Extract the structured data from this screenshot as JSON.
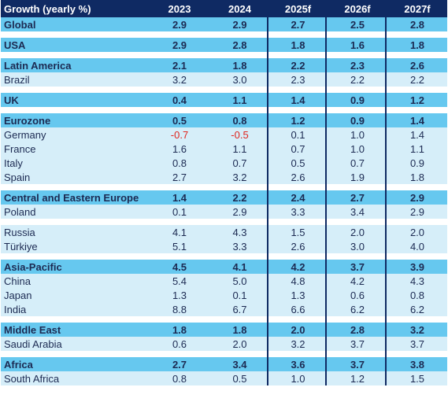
{
  "header": {
    "label": "Growth (yearly %)",
    "years": [
      "2023",
      "2024",
      "2025f",
      "2026f",
      "2027f"
    ]
  },
  "groups": [
    {
      "section": {
        "name": "Global",
        "values": [
          "2.9",
          "2.9",
          "2.7",
          "2.5",
          "2.8"
        ]
      },
      "rows": []
    },
    {
      "section": {
        "name": "USA",
        "values": [
          "2.9",
          "2.8",
          "1.8",
          "1.6",
          "1.8"
        ]
      },
      "rows": []
    },
    {
      "section": {
        "name": "Latin America",
        "values": [
          "2.1",
          "1.8",
          "2.2",
          "2.3",
          "2.6"
        ]
      },
      "rows": [
        {
          "name": "Brazil",
          "values": [
            "3.2",
            "3.0",
            "2.3",
            "2.2",
            "2.2"
          ]
        }
      ]
    },
    {
      "section": {
        "name": "UK",
        "values": [
          "0.4",
          "1.1",
          "1.4",
          "0.9",
          "1.2"
        ]
      },
      "rows": []
    },
    {
      "section": {
        "name": "Eurozone",
        "values": [
          "0.5",
          "0.8",
          "1.2",
          "0.9",
          "1.4"
        ]
      },
      "rows": [
        {
          "name": "Germany",
          "values": [
            "-0.7",
            "-0.5",
            "0.1",
            "1.0",
            "1.4"
          ]
        },
        {
          "name": "France",
          "values": [
            "1.6",
            "1.1",
            "0.7",
            "1.0",
            "1.1"
          ]
        },
        {
          "name": "Italy",
          "values": [
            "0.8",
            "0.7",
            "0.5",
            "0.7",
            "0.9"
          ]
        },
        {
          "name": "Spain",
          "values": [
            "2.7",
            "3.2",
            "2.6",
            "1.9",
            "1.8"
          ]
        }
      ]
    },
    {
      "section": {
        "name": "Central and Eastern Europe",
        "values": [
          "1.4",
          "2.2",
          "2.4",
          "2.7",
          "2.9"
        ]
      },
      "rows": [
        {
          "name": "Poland",
          "values": [
            "0.1",
            "2.9",
            "3.3",
            "3.4",
            "2.9"
          ]
        }
      ]
    },
    {
      "section": null,
      "rows": [
        {
          "name": "Russia",
          "values": [
            "4.1",
            "4.3",
            "1.5",
            "2.0",
            "2.0"
          ]
        },
        {
          "name": "Türkiye",
          "values": [
            "5.1",
            "3.3",
            "2.6",
            "3.0",
            "4.0"
          ]
        }
      ]
    },
    {
      "section": {
        "name": "Asia-Pacific",
        "values": [
          "4.5",
          "4.1",
          "4.2",
          "3.7",
          "3.9"
        ]
      },
      "rows": [
        {
          "name": "China",
          "values": [
            "5.4",
            "5.0",
            "4.8",
            "4.2",
            "4.3"
          ]
        },
        {
          "name": "Japan",
          "values": [
            "1.3",
            "0.1",
            "1.3",
            "0.6",
            "0.8"
          ]
        },
        {
          "name": "India",
          "values": [
            "8.8",
            "6.7",
            "6.6",
            "6.2",
            "6.2"
          ]
        }
      ]
    },
    {
      "section": {
        "name": "Middle East",
        "values": [
          "1.8",
          "1.8",
          "2.0",
          "2.8",
          "3.2"
        ]
      },
      "rows": [
        {
          "name": "Saudi Arabia",
          "values": [
            "0.6",
            "2.0",
            "3.2",
            "3.7",
            "3.7"
          ]
        }
      ]
    },
    {
      "section": {
        "name": "Africa",
        "values": [
          "2.7",
          "3.4",
          "3.6",
          "3.7",
          "3.8"
        ]
      },
      "rows": [
        {
          "name": "South Africa",
          "values": [
            "0.8",
            "0.5",
            "1.0",
            "1.2",
            "1.5"
          ]
        }
      ]
    }
  ],
  "colors": {
    "header_bg": "#0f2a63",
    "section_bg": "#66c8ef",
    "row_bg": "#d6eef9",
    "negative": "#e0241d"
  }
}
